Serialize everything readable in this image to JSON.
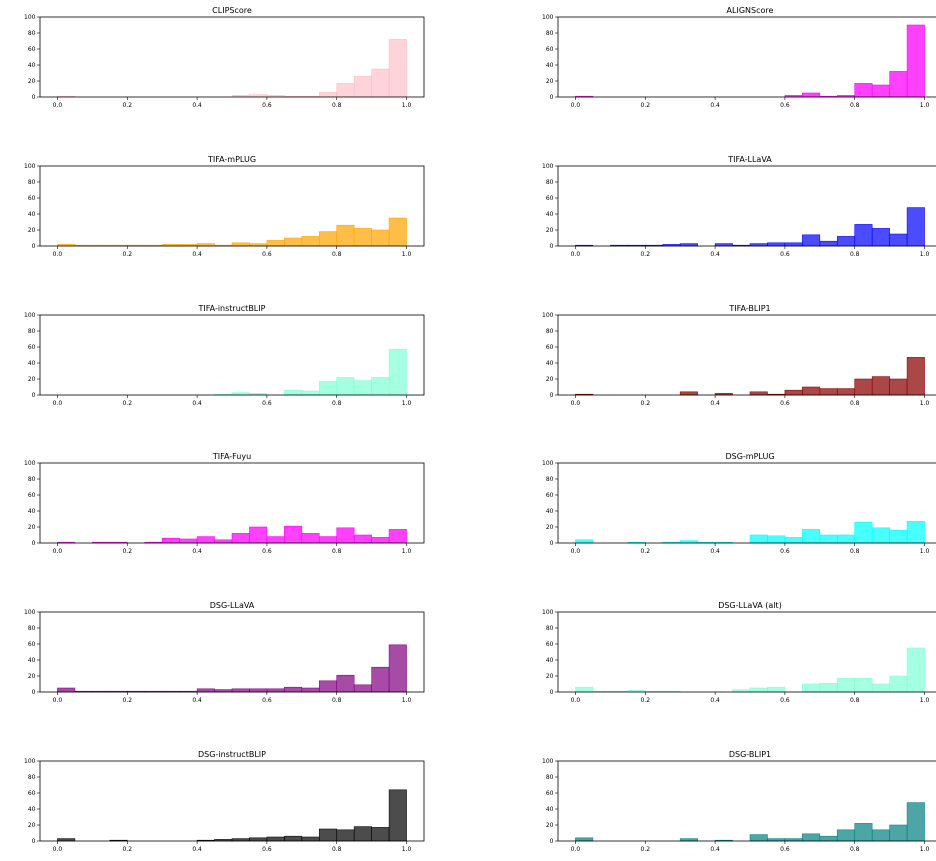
{
  "chart_data": [
    {
      "type": "bar",
      "title": "CLIPScore",
      "color": "#ffb6c1",
      "alpha": 0.6,
      "ylim": [
        0,
        100
      ],
      "yticks": [
        0,
        20,
        40,
        60,
        80,
        100
      ],
      "xlim": [
        -0.05,
        1.05
      ],
      "xticks": [
        "0.0",
        "0.2",
        "0.4",
        "0.6",
        "0.8",
        "1.0"
      ],
      "bin_start": 0.0,
      "bin_width": 0.05,
      "values": [
        1,
        0,
        0,
        0,
        0,
        0,
        0,
        0,
        0,
        0,
        2,
        3,
        2,
        1,
        1,
        6,
        17,
        26,
        35,
        72
      ]
    },
    {
      "type": "bar",
      "title": "ALIGNScore",
      "color": "#ff00ff",
      "alpha": 0.75,
      "ylim": [
        0,
        100
      ],
      "yticks": [
        0,
        20,
        40,
        60,
        80,
        100
      ],
      "xlim": [
        -0.05,
        1.05
      ],
      "xticks": [
        "0.0",
        "0.2",
        "0.4",
        "0.6",
        "0.8",
        "1.0"
      ],
      "bin_start": 0.0,
      "bin_width": 0.05,
      "values": [
        1,
        0,
        0,
        0,
        0,
        0,
        0,
        0,
        0,
        0,
        0,
        0,
        2,
        5,
        1,
        2,
        17,
        15,
        32,
        90
      ]
    },
    {
      "type": "bar",
      "title": "TIFA-mPLUG",
      "color": "#ffa500",
      "alpha": 0.72,
      "ylim": [
        0,
        100
      ],
      "yticks": [
        0,
        20,
        40,
        60,
        80,
        100
      ],
      "xlim": [
        -0.05,
        1.05
      ],
      "xticks": [
        "0.0",
        "0.2",
        "0.4",
        "0.6",
        "0.8",
        "1.0"
      ],
      "bin_start": 0.0,
      "bin_width": 0.05,
      "values": [
        2,
        1,
        1,
        1,
        1,
        1,
        2,
        2,
        3,
        1,
        4,
        3,
        7,
        10,
        12,
        18,
        26,
        22,
        20,
        35
      ]
    },
    {
      "type": "bar",
      "title": "TIFA-LLaVA",
      "color": "#0000ff",
      "alpha": 0.7,
      "ylim": [
        0,
        100
      ],
      "yticks": [
        0,
        20,
        40,
        60,
        80,
        100
      ],
      "xlim": [
        -0.05,
        1.05
      ],
      "xticks": [
        "0.0",
        "0.2",
        "0.4",
        "0.6",
        "0.8",
        "1.0"
      ],
      "bin_start": 0.0,
      "bin_width": 0.05,
      "values": [
        1,
        0,
        1,
        1,
        1,
        2,
        3,
        0,
        3,
        1,
        3,
        4,
        4,
        14,
        6,
        12,
        27,
        22,
        15,
        48
      ]
    },
    {
      "type": "bar",
      "title": "TIFA-instructBLIP",
      "color": "#7fffd4",
      "alpha": 0.7,
      "ylim": [
        0,
        100
      ],
      "yticks": [
        0,
        20,
        40,
        60,
        80,
        100
      ],
      "xlim": [
        -0.05,
        1.05
      ],
      "xticks": [
        "0.0",
        "0.2",
        "0.4",
        "0.6",
        "0.8",
        "1.0"
      ],
      "bin_start": 0.0,
      "bin_width": 0.05,
      "values": [
        0,
        0,
        0,
        0,
        0,
        0,
        0,
        0,
        0,
        1,
        3,
        2,
        0,
        6,
        5,
        17,
        22,
        18,
        22,
        57
      ]
    },
    {
      "type": "bar",
      "title": "TIFA-BLIP1",
      "color": "#8b0000",
      "alpha": 0.72,
      "ylim": [
        0,
        100
      ],
      "yticks": [
        0,
        20,
        40,
        60,
        80,
        100
      ],
      "xlim": [
        -0.05,
        1.05
      ],
      "xticks": [
        "0.0",
        "0.2",
        "0.4",
        "0.6",
        "0.8",
        "1.0"
      ],
      "bin_start": 0.0,
      "bin_width": 0.05,
      "values": [
        1,
        0,
        0,
        0,
        0,
        0,
        4,
        0,
        2,
        0,
        4,
        1,
        6,
        10,
        8,
        8,
        20,
        23,
        20,
        47
      ]
    },
    {
      "type": "bar",
      "title": "TIFA-Fuyu",
      "color": "#ff00ff",
      "alpha": 0.75,
      "ylim": [
        0,
        100
      ],
      "yticks": [
        0,
        20,
        40,
        60,
        80,
        100
      ],
      "xlim": [
        -0.05,
        1.05
      ],
      "xticks": [
        "0.0",
        "0.2",
        "0.4",
        "0.6",
        "0.8",
        "1.0"
      ],
      "bin_start": 0.0,
      "bin_width": 0.05,
      "values": [
        1,
        0,
        1,
        1,
        0,
        1,
        6,
        5,
        8,
        4,
        12,
        20,
        8,
        21,
        12,
        8,
        19,
        10,
        7,
        17
      ]
    },
    {
      "type": "bar",
      "title": "DSG-mPLUG",
      "color": "#00ffff",
      "alpha": 0.72,
      "ylim": [
        0,
        100
      ],
      "yticks": [
        0,
        20,
        40,
        60,
        80,
        100
      ],
      "xlim": [
        -0.05,
        1.05
      ],
      "xticks": [
        "0.0",
        "0.2",
        "0.4",
        "0.6",
        "0.8",
        "1.0"
      ],
      "bin_start": 0.0,
      "bin_width": 0.05,
      "values": [
        4,
        0,
        0,
        1,
        0,
        1,
        3,
        1,
        1,
        0,
        10,
        9,
        7,
        17,
        10,
        10,
        26,
        19,
        16,
        27
      ]
    },
    {
      "type": "bar",
      "title": "DSG-LLaVA",
      "color": "#800080",
      "alpha": 0.7,
      "ylim": [
        0,
        100
      ],
      "yticks": [
        0,
        20,
        40,
        60,
        80,
        100
      ],
      "xlim": [
        -0.05,
        1.05
      ],
      "xticks": [
        "0.0",
        "0.2",
        "0.4",
        "0.6",
        "0.8",
        "1.0"
      ],
      "bin_start": 0.0,
      "bin_width": 0.05,
      "values": [
        5,
        1,
        1,
        1,
        1,
        1,
        1,
        1,
        4,
        3,
        4,
        4,
        4,
        6,
        5,
        14,
        21,
        9,
        31,
        59
      ]
    },
    {
      "type": "bar",
      "title": "DSG-LLaVA (alt)",
      "color": "#7fffd4",
      "alpha": 0.7,
      "ylim": [
        0,
        100
      ],
      "yticks": [
        0,
        20,
        40,
        60,
        80,
        100
      ],
      "xlim": [
        -0.05,
        1.05
      ],
      "xticks": [
        "0.0",
        "0.2",
        "0.4",
        "0.6",
        "0.8",
        "1.0"
      ],
      "bin_start": 0.0,
      "bin_width": 0.05,
      "values": [
        6,
        1,
        1,
        2,
        1,
        1,
        0,
        0,
        0,
        3,
        5,
        6,
        0,
        10,
        11,
        17,
        17,
        10,
        20,
        55
      ]
    },
    {
      "type": "bar",
      "title": "DSG-instructBLIP",
      "color": "#000000",
      "alpha": 0.7,
      "ylim": [
        0,
        100
      ],
      "yticks": [
        0,
        20,
        40,
        60,
        80,
        100
      ],
      "xlim": [
        -0.05,
        1.05
      ],
      "xticks": [
        "0.0",
        "0.2",
        "0.4",
        "0.6",
        "0.8",
        "1.0"
      ],
      "bin_start": 0.0,
      "bin_width": 0.05,
      "values": [
        3,
        0,
        0,
        1,
        0,
        0,
        0,
        0,
        1,
        2,
        3,
        4,
        5,
        6,
        5,
        15,
        14,
        18,
        17,
        64
      ]
    },
    {
      "type": "bar",
      "title": "DSG-BLIP1",
      "color": "#008080",
      "alpha": 0.7,
      "ylim": [
        0,
        100
      ],
      "yticks": [
        0,
        20,
        40,
        60,
        80,
        100
      ],
      "xlim": [
        -0.05,
        1.05
      ],
      "xticks": [
        "0.0",
        "0.2",
        "0.4",
        "0.6",
        "0.8",
        "1.0"
      ],
      "bin_start": 0.0,
      "bin_width": 0.05,
      "values": [
        4,
        0,
        0,
        0,
        0,
        0,
        3,
        0,
        1,
        0,
        8,
        3,
        3,
        9,
        6,
        14,
        22,
        14,
        20,
        48
      ]
    }
  ]
}
